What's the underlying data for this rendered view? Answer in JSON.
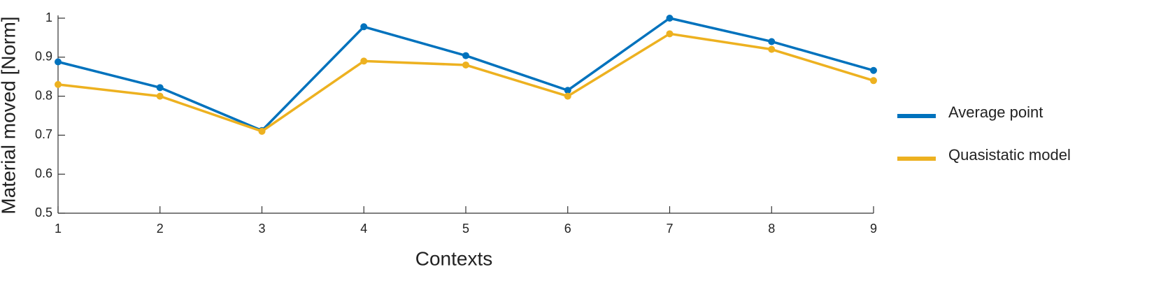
{
  "chart_data": {
    "type": "line",
    "x_label": "Contexts",
    "y_label": "Material moved [Norm]",
    "x": [
      1,
      2,
      3,
      4,
      5,
      6,
      7,
      8,
      9
    ],
    "series": [
      {
        "name": "Average point",
        "color": "#0072bd",
        "values": [
          0.888,
          0.822,
          0.712,
          0.978,
          0.904,
          0.815,
          1.0,
          0.94,
          0.866
        ]
      },
      {
        "name": "Quasistatic model",
        "color": "#edb120",
        "values": [
          0.83,
          0.8,
          0.71,
          0.89,
          0.88,
          0.8,
          0.96,
          0.92,
          0.84
        ]
      }
    ],
    "xlim": [
      1,
      9
    ],
    "xticks": [
      1,
      2,
      3,
      4,
      5,
      6,
      7,
      8,
      9
    ],
    "ylim": [
      0.5,
      1
    ],
    "yticks": [
      0.5,
      0.6,
      0.7,
      0.8,
      0.9,
      1
    ],
    "legend": "right"
  }
}
